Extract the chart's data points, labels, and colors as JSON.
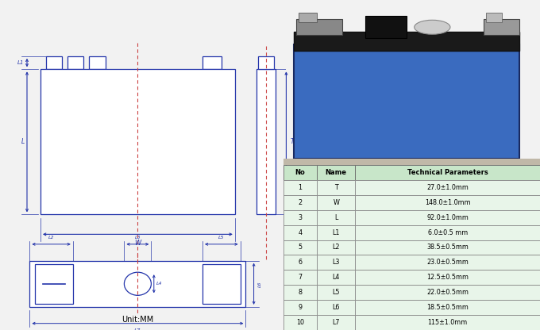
{
  "table_headers": [
    "No",
    "Name",
    "Technical Parameters"
  ],
  "table_rows": [
    [
      "1",
      "T",
      "27.0±1.0mm"
    ],
    [
      "2",
      "W",
      "148.0±1.0mm"
    ],
    [
      "3",
      "L",
      "92.0±1.0mm"
    ],
    [
      "4",
      "L1",
      "6.0±0.5 mm"
    ],
    [
      "5",
      "L2",
      "38.5±0.5mm"
    ],
    [
      "6",
      "L3",
      "23.0±0.5mm"
    ],
    [
      "7",
      "L4",
      "12.5±0.5mm"
    ],
    [
      "8",
      "L5",
      "22.0±0.5mm"
    ],
    [
      "9",
      "L6",
      "18.5±0.5mm"
    ],
    [
      "10",
      "L7",
      "115±1.0mm"
    ]
  ],
  "table_header_bg": "#c8e6c9",
  "table_row_bg": "#e8f5e9",
  "unit_text": "Unit:MM",
  "draw_color": "#2233aa",
  "centerline_color": "#cc4444",
  "bg_color": "#f2f2f2"
}
